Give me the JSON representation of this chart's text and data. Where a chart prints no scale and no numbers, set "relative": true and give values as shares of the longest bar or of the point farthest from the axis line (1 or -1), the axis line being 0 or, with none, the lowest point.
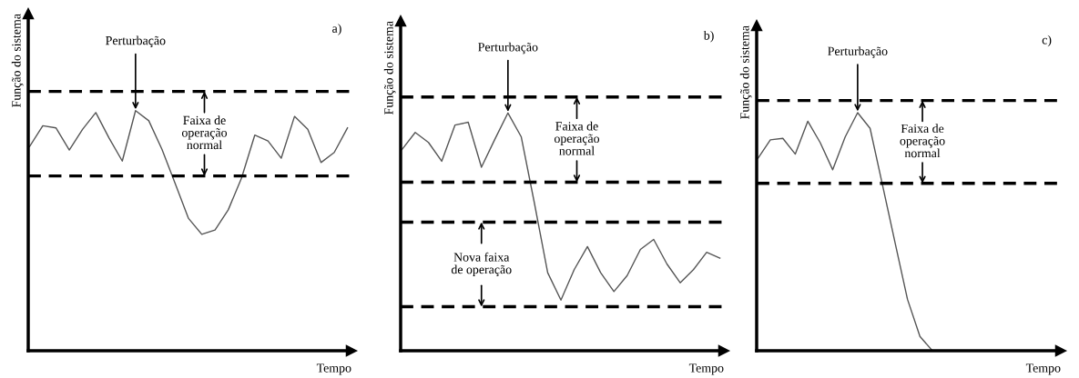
{
  "chart_data": [
    {
      "type": "line",
      "title": "a)",
      "xlabel": "Tempo",
      "ylabel": "Função do sistema",
      "relative": true,
      "categories": [
        null,
        null,
        null,
        null,
        null,
        null,
        null,
        null,
        null,
        null,
        null,
        null,
        null,
        null,
        null,
        null,
        null,
        null,
        null,
        null,
        null,
        null,
        null,
        null,
        null
      ],
      "series": [
        {
          "color": "#555555",
          "values": [
            0.85,
            0.937,
            0.928,
            0.836,
            0.922,
            0.992,
            0.886,
            0.79,
            1.0,
            0.958,
            0.838,
            0.695,
            0.551,
            0.485,
            0.503,
            0.587,
            0.719,
            0.898,
            0.874,
            0.802,
            0.976,
            0.922,
            0.784,
            0.826,
            0.928
          ]
        }
      ],
      "ref_lines": [
        {
          "axis": "y",
          "value": 1.08,
          "color": "#000000",
          "line_style": "dashed"
        },
        {
          "axis": "y",
          "value": 0.728,
          "color": "#000000",
          "line_style": "dashed"
        }
      ],
      "annotations": [
        "Perturbação",
        "Faixa de\noperação\nnormal"
      ],
      "marker": "none",
      "line_style": "solid",
      "tick_labels": false
    },
    {
      "type": "line",
      "title": "b)",
      "xlabel": "Tempo",
      "ylabel": "Função do sistema",
      "relative": true,
      "categories": [
        null,
        null,
        null,
        null,
        null,
        null,
        null,
        null,
        null,
        null,
        null,
        null,
        null,
        null,
        null,
        null,
        null,
        null,
        null,
        null,
        null,
        null,
        null,
        null,
        null
      ],
      "series": [
        {
          "color": "#555555",
          "values": [
            0.846,
            0.918,
            0.876,
            0.797,
            0.949,
            0.961,
            0.772,
            0.888,
            1.0,
            0.9,
            0.62,
            0.328,
            0.213,
            0.341,
            0.438,
            0.328,
            0.249,
            0.316,
            0.426,
            0.468,
            0.365,
            0.286,
            0.341,
            0.414,
            0.389
          ]
        }
      ],
      "ref_lines": [
        {
          "axis": "y",
          "value": 1.067,
          "color": "#000000",
          "line_style": "dashed"
        },
        {
          "axis": "y",
          "value": 0.709,
          "color": "#000000",
          "line_style": "dashed"
        },
        {
          "axis": "y",
          "value": 0.541,
          "color": "#000000",
          "line_style": "dashed"
        },
        {
          "axis": "y",
          "value": 0.185,
          "color": "#000000",
          "line_style": "dashed"
        }
      ],
      "annotations": [
        "Perturbação",
        "Faixa de\noperação\nnormal",
        "Nova faixa\nde operação"
      ],
      "marker": "none",
      "line_style": "solid",
      "tick_labels": false
    },
    {
      "type": "line",
      "title": "c)",
      "xlabel": "Tempo",
      "ylabel": "Função do sistema",
      "relative": true,
      "categories": [
        null,
        null,
        null,
        null,
        null,
        null,
        null,
        null,
        null,
        null,
        null,
        null,
        null,
        null,
        null,
        null,
        null,
        null,
        null,
        null,
        null,
        null,
        null,
        null,
        null
      ],
      "series": [
        {
          "color": "#555555",
          "values": [
            0.808,
            0.886,
            0.892,
            0.826,
            0.964,
            0.874,
            0.76,
            0.898,
            1.0,
            0.934,
            0.695,
            0.455,
            0.216,
            0.06,
            0.0,
            null,
            null,
            null,
            null,
            null,
            null,
            null,
            null,
            null,
            null
          ]
        }
      ],
      "ref_lines": [
        {
          "axis": "y",
          "value": 1.051,
          "color": "#000000",
          "line_style": "dashed"
        },
        {
          "axis": "y",
          "value": 0.703,
          "color": "#000000",
          "line_style": "dashed"
        }
      ],
      "annotations": [
        "Perturbação",
        "Faixa de\noperação\nnormal"
      ],
      "marker": "none",
      "line_style": "solid",
      "tick_labels": false
    }
  ]
}
